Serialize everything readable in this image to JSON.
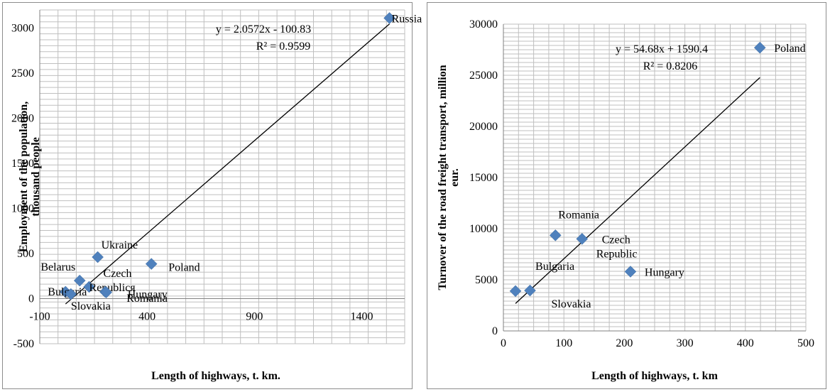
{
  "chart_data": [
    {
      "type": "scatter",
      "xlabel": "Length of highways, t. km.",
      "ylabel": "Employment of the population, thousand people",
      "xlim": [
        -100,
        1600
      ],
      "ylim": [
        -500,
        3200
      ],
      "x_ticks": [
        -100,
        400,
        900,
        1400
      ],
      "y_ticks": [
        -500,
        0,
        500,
        1000,
        1500,
        2000,
        2500,
        3000
      ],
      "grid": true,
      "marker_color": "#4f81bd",
      "series": [
        {
          "points": [
            {
              "label": "Russia",
              "x": 1529,
              "y": 3110
            },
            {
              "label": "Ukraine",
              "x": 170,
              "y": 460
            },
            {
              "label": "Poland",
              "x": 420,
              "y": 385
            },
            {
              "label": "Belarus",
              "x": 86,
              "y": 200
            },
            {
              "label": "Czech Republicя",
              "x": 130,
              "y": 130
            },
            {
              "label": "Romania",
              "x": 205,
              "y": 75
            },
            {
              "label": "Bulgaria",
              "x": 20,
              "y": 75
            },
            {
              "label": "Slovakia",
              "x": 45,
              "y": 50
            },
            {
              "label": "Hungary",
              "x": 210,
              "y": 70
            }
          ]
        }
      ],
      "trendline": {
        "slope": 2.0572,
        "intercept": -100.83,
        "x_range": [
          20,
          1529
        ],
        "equation": "y = 2.0572x - 100.83",
        "r2": "R² = 0.9599"
      }
    },
    {
      "type": "scatter",
      "xlabel": "Length of highways, t. km",
      "ylabel": "Turnover of the road freight transport, million eur.",
      "xlim": [
        0,
        500
      ],
      "ylim": [
        0,
        30000
      ],
      "x_ticks": [
        0,
        100,
        200,
        300,
        400,
        500
      ],
      "y_ticks": [
        0,
        5000,
        10000,
        15000,
        20000,
        25000,
        30000
      ],
      "grid": true,
      "marker_color": "#4f81bd",
      "series": [
        {
          "points": [
            {
              "label": "Poland",
              "x": 424,
              "y": 27700
            },
            {
              "label": "Romania",
              "x": 86,
              "y": 9350
            },
            {
              "label": "Czech Republic",
              "x": 130,
              "y": 9000
            },
            {
              "label": "Hungary",
              "x": 210,
              "y": 5800
            },
            {
              "label": "Bulgaria",
              "x": 20,
              "y": 3900
            },
            {
              "label": "Slovakia",
              "x": 44,
              "y": 3950
            }
          ]
        }
      ],
      "trendline": {
        "slope": 54.68,
        "intercept": 1590.4,
        "x_range": [
          20,
          424
        ],
        "equation": "y = 54.68x + 1590.4",
        "r2": "R² = 0.8206"
      }
    }
  ]
}
